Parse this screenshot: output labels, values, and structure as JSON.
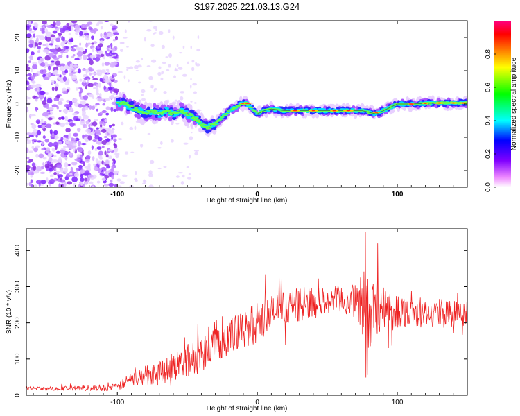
{
  "figure_title": "S197.2025.221.03.13.G24",
  "chart_data": [
    {
      "type": "heatmap",
      "title": "S197.2025.221.03.13.G24",
      "xlabel": "Height of straight line (km)",
      "ylabel": "Frequency (Hz)",
      "xlim": [
        -165,
        150
      ],
      "ylim": [
        -25,
        25
      ],
      "x_ticks": [
        -100,
        0,
        100
      ],
      "y_ticks": [
        -20,
        -10,
        0,
        10,
        20
      ],
      "colorbar": {
        "label": "Normalized spectral amplitude",
        "range": [
          0,
          1
        ],
        "ticks": [
          0.0,
          0.2,
          0.4,
          0.6,
          0.8
        ],
        "tick_labels": [
          "0.0",
          "0.2",
          "0.4",
          "0.6",
          "0.8"
        ],
        "colors": [
          "#ffffff",
          "#ff00ff",
          "#8000ff",
          "#0000ff",
          "#00ffff",
          "#00ff00",
          "#ffff00",
          "#ff8000",
          "#ff0000",
          "#ff0080"
        ]
      },
      "ridge": {
        "x": [
          -100,
          -95,
          -90,
          -85,
          -80,
          -75,
          -70,
          -65,
          -60,
          -55,
          -50,
          -45,
          -40,
          -35,
          -30,
          -25,
          -20,
          -15,
          -12,
          -8,
          -5,
          -2,
          0,
          5,
          10,
          20,
          30,
          40,
          50,
          60,
          70,
          75,
          80,
          85,
          90,
          95,
          100,
          110,
          120,
          130,
          140,
          150
        ],
        "y": [
          0,
          0.3,
          -1,
          -2,
          -3,
          -2,
          -3,
          -2,
          -3,
          -2,
          -3,
          -4,
          -6,
          -7,
          -6,
          -4,
          -2,
          -1,
          0,
          0.2,
          -1,
          -2,
          -3,
          -2,
          -1.5,
          -2,
          -2,
          -2,
          -2,
          -2,
          -2,
          -2,
          -2.5,
          -3,
          -2,
          -1,
          0,
          0,
          0.2,
          0.3,
          0.3,
          0.3
        ]
      },
      "noise_region": [
        -165,
        -100
      ]
    },
    {
      "type": "line",
      "xlabel": "Height of straight line (km)",
      "ylabel": "SNR (10 * v/v)",
      "xlim": [
        -165,
        150
      ],
      "ylim": [
        0,
        460
      ],
      "x_ticks": [
        -100,
        0,
        100
      ],
      "y_ticks": [
        0,
        100,
        200,
        300,
        400
      ],
      "series": [
        {
          "name": "SNR",
          "color": "#ee2222",
          "x": [
            -165,
            -150,
            -130,
            -110,
            -100,
            -90,
            -80,
            -70,
            -60,
            -50,
            -40,
            -30,
            -20,
            -10,
            0,
            10,
            20,
            30,
            40,
            50,
            60,
            70,
            78,
            80,
            85,
            90,
            95,
            100,
            110,
            120,
            130,
            140,
            150
          ],
          "y": [
            18,
            18,
            20,
            20,
            22,
            45,
            55,
            65,
            80,
            95,
            115,
            150,
            160,
            175,
            205,
            225,
            245,
            250,
            255,
            260,
            262,
            260,
            250,
            210,
            240,
            225,
            230,
            235,
            230,
            225,
            230,
            225,
            225
          ],
          "spread": [
            8,
            8,
            10,
            12,
            14,
            30,
            40,
            50,
            60,
            70,
            75,
            80,
            80,
            80,
            80,
            75,
            70,
            65,
            60,
            60,
            60,
            65,
            180,
            120,
            150,
            130,
            90,
            70,
            55,
            50,
            55,
            55,
            55
          ]
        }
      ]
    }
  ]
}
